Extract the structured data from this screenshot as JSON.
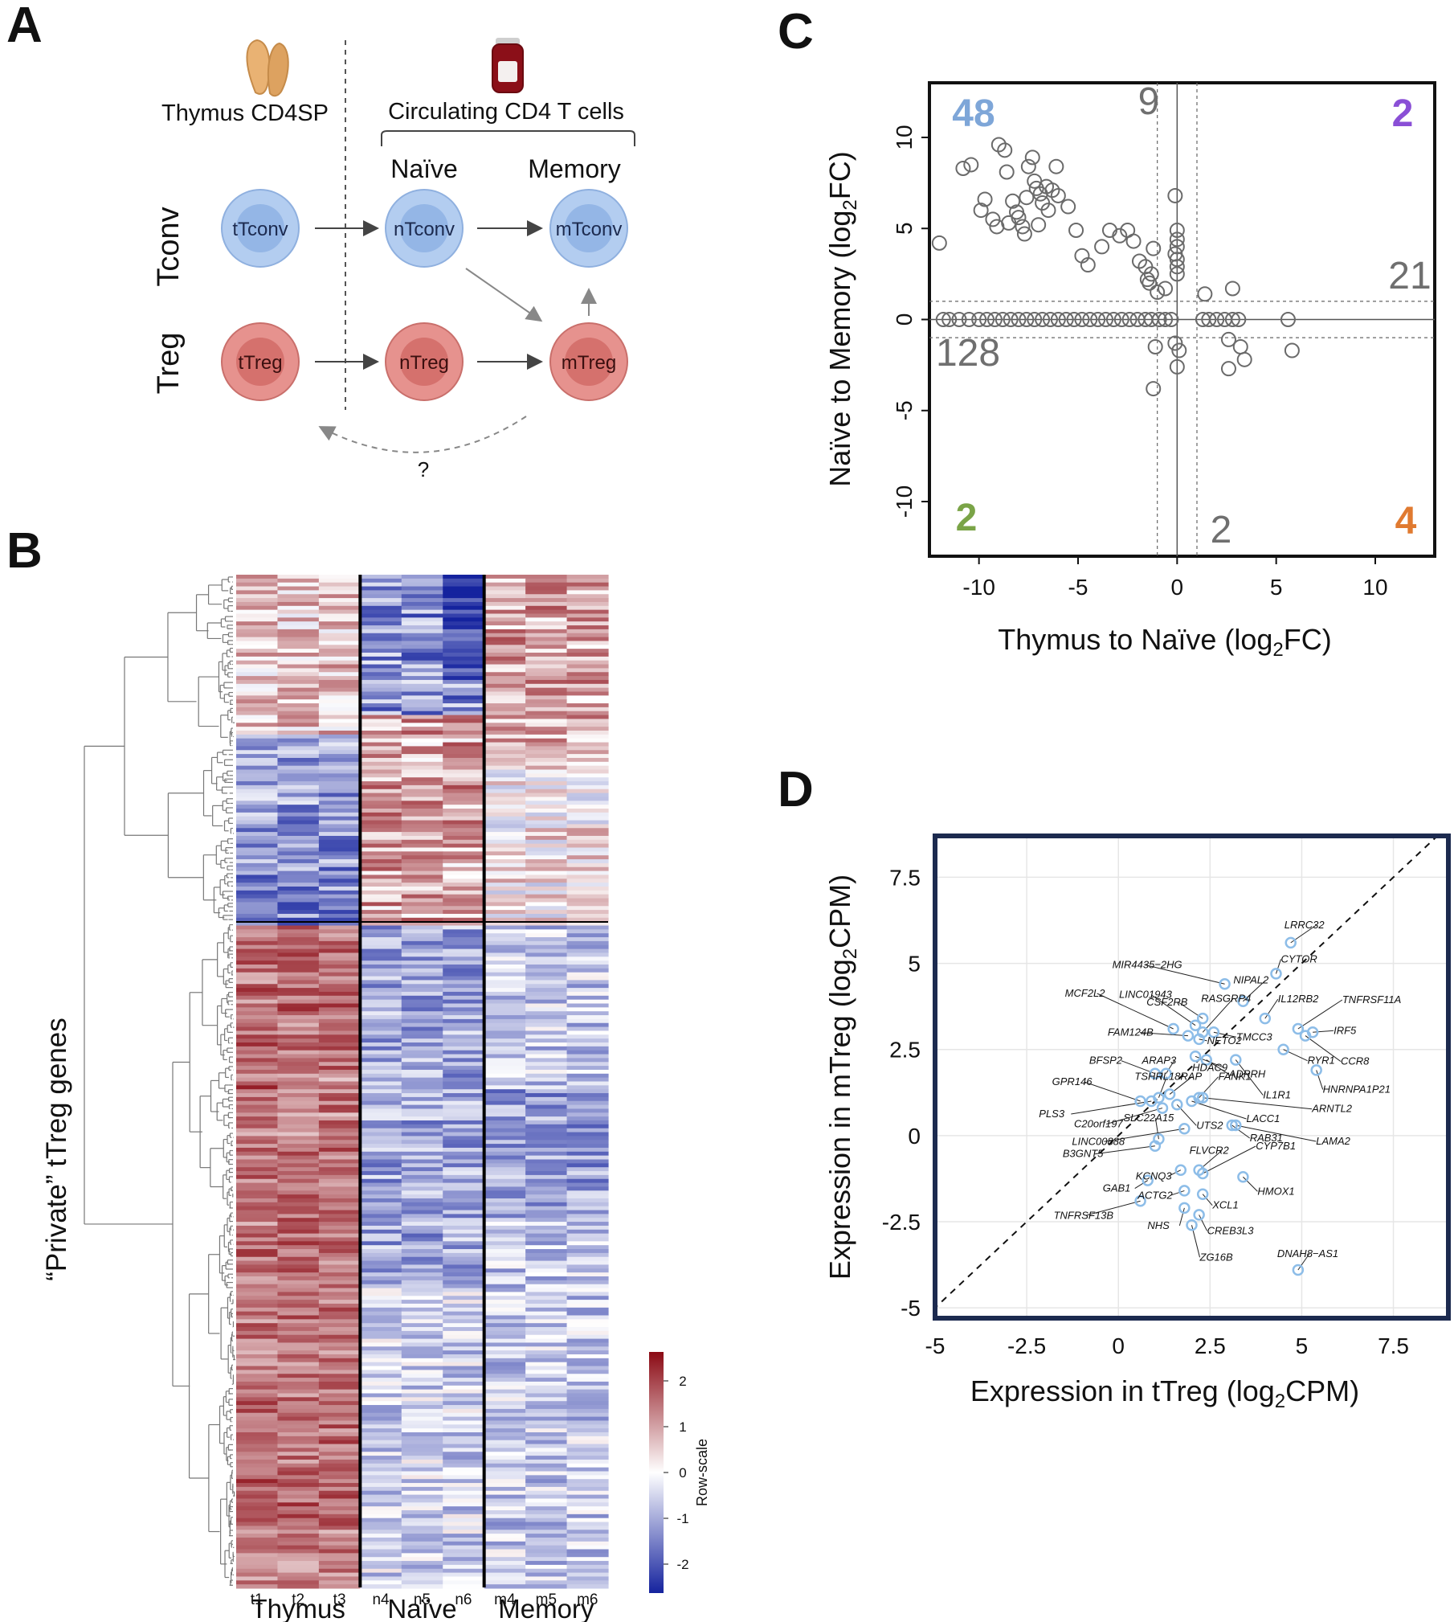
{
  "panels": {
    "A": {
      "label": "A",
      "thymus_title": "Thymus CD4SP",
      "circulating_title": "Circulating CD4 T cells",
      "naive_header": "Naïve",
      "memory_header": "Memory",
      "row_tconv": "Tconv",
      "row_treg": "Treg",
      "cells": {
        "tTconv": "tTconv",
        "nTconv": "nTconv",
        "mTconv": "mTconv",
        "tTreg": "tTreg",
        "nTreg": "nTreg",
        "mTreg": "mTreg"
      },
      "question": "?",
      "colors": {
        "tconv_fill": "#aac8ee",
        "tconv_inner": "#8fb2e6",
        "treg_fill": "#e38d89",
        "treg_inner": "#d46f6b"
      }
    },
    "B": {
      "label": "B",
      "ylabel": "“Private” tTreg genes",
      "columns": [
        "t1",
        "t2",
        "t3",
        "n4",
        "n5",
        "n6",
        "m4",
        "m5",
        "m6"
      ],
      "groups": [
        "Thymus",
        "Naïve",
        "Memory"
      ],
      "legend_title": "Row-scale",
      "legend_ticks": [
        "2",
        "1",
        "0",
        "-1",
        "-2"
      ],
      "colors": {
        "high": "#8b0a14",
        "mid": "#ffffff",
        "low": "#15239e"
      }
    },
    "C": {
      "label": "C",
      "xlabel_pre": "Thymus to Naïve (log",
      "xlabel_sub": "2",
      "xlabel_post": "FC)",
      "ylabel_pre": "Naïve to Memory (log",
      "ylabel_sub": "2",
      "ylabel_post": "FC)",
      "quadrant_counts": [
        {
          "text": "48",
          "color": "#7ea6d8"
        },
        {
          "text": "9",
          "color": "#6f6f6f"
        },
        {
          "text": "2",
          "color": "#8a4fd6"
        },
        {
          "text": "21",
          "color": "#6f6f6f"
        },
        {
          "text": "128",
          "color": "#6f6f6f"
        },
        {
          "text": "2",
          "color": "#7aa447"
        },
        {
          "text": "2",
          "color": "#6f6f6f"
        },
        {
          "text": "4",
          "color": "#e07a30"
        }
      ]
    },
    "D": {
      "label": "D",
      "xlabel_pre": "Expression in tTreg (log",
      "xlabel_sub": "2",
      "xlabel_post": "CPM)",
      "ylabel_pre": "Expression in mTreg (log",
      "ylabel_sub": "2",
      "ylabel_post": "CPM)",
      "frame_color": "#1c2a4f",
      "point_color": "#8dbde8"
    }
  },
  "chart_data": [
    {
      "type": "scatter",
      "panel": "C",
      "xlabel": "Thymus to Naïve (log2FC)",
      "ylabel": "Naïve to Memory (log2FC)",
      "xlim": [
        -12.5,
        13
      ],
      "ylim": [
        -13,
        13
      ],
      "xticks": [
        -10,
        -5,
        0,
        5,
        10
      ],
      "yticks": [
        10,
        5,
        0,
        -5,
        -10
      ],
      "thresholds": [
        -1,
        1
      ],
      "points": [
        [
          -12,
          4.2
        ],
        [
          -10.8,
          8.3
        ],
        [
          -10.4,
          8.5
        ],
        [
          -9.9,
          6
        ],
        [
          -9.7,
          6.6
        ],
        [
          -9.3,
          5.5
        ],
        [
          -9.1,
          5.1
        ],
        [
          -9,
          9.6
        ],
        [
          -8.7,
          9.3
        ],
        [
          -8.6,
          8.1
        ],
        [
          -8.5,
          5.3
        ],
        [
          -8.3,
          6.5
        ],
        [
          -8.1,
          5.9
        ],
        [
          -8,
          5.6
        ],
        [
          -7.8,
          5.1
        ],
        [
          -7.7,
          4.7
        ],
        [
          -7.6,
          6.7
        ],
        [
          -7.5,
          8.4
        ],
        [
          -7.3,
          8.9
        ],
        [
          -7.2,
          7.6
        ],
        [
          -7.1,
          7.2
        ],
        [
          -7,
          5.2
        ],
        [
          -6.9,
          6.9
        ],
        [
          -6.8,
          6.4
        ],
        [
          -6.6,
          7.3
        ],
        [
          -6.5,
          6
        ],
        [
          -6.3,
          7.1
        ],
        [
          -6.1,
          8.4
        ],
        [
          -6,
          6.8
        ],
        [
          -5.5,
          6.2
        ],
        [
          -5.1,
          4.9
        ],
        [
          -4.8,
          3.5
        ],
        [
          -4.5,
          3
        ],
        [
          -3.8,
          4
        ],
        [
          -3.4,
          4.9
        ],
        [
          -2.9,
          4.6
        ],
        [
          -2.5,
          4.9
        ],
        [
          -2.2,
          4.3
        ],
        [
          -1.9,
          3.2
        ],
        [
          -1.6,
          2.9
        ],
        [
          -1.5,
          2.2
        ],
        [
          -1.2,
          3.9
        ],
        [
          -1.3,
          2.5
        ],
        [
          -1.4,
          2
        ],
        [
          -0.6,
          1.7
        ],
        [
          -1,
          1.5
        ],
        [
          -1.1,
          -1.5
        ],
        [
          -1.2,
          -3.8
        ],
        [
          -0.1,
          6.8
        ],
        [
          0,
          4.9
        ],
        [
          0,
          4.4
        ],
        [
          0,
          4
        ],
        [
          -0.1,
          3.6
        ],
        [
          0,
          3.3
        ],
        [
          0,
          2.9
        ],
        [
          0,
          2.5
        ],
        [
          -0.1,
          -1.3
        ],
        [
          0,
          -2.6
        ],
        [
          0.1,
          -1.7
        ],
        [
          1.4,
          1.4
        ],
        [
          2.8,
          1.7
        ],
        [
          2.6,
          -1.1
        ],
        [
          3.4,
          -2.2
        ],
        [
          2.6,
          -2.7
        ],
        [
          3.2,
          -1.5
        ],
        [
          5.6,
          0
        ],
        [
          5.8,
          -1.7
        ],
        [
          -11.8,
          0
        ],
        [
          -11.5,
          0
        ],
        [
          -11,
          0
        ],
        [
          -10.5,
          0
        ],
        [
          -10,
          0
        ],
        [
          -9.6,
          0
        ],
        [
          -9.2,
          0
        ],
        [
          -8.8,
          0
        ],
        [
          -8.4,
          0
        ],
        [
          -8,
          0
        ],
        [
          -7.6,
          0
        ],
        [
          -7.2,
          0
        ],
        [
          -6.8,
          0
        ],
        [
          -6.4,
          0
        ],
        [
          -6,
          0
        ],
        [
          -5.6,
          0
        ],
        [
          -5.2,
          0
        ],
        [
          -4.8,
          0
        ],
        [
          -4.4,
          0
        ],
        [
          -4,
          0
        ],
        [
          -3.6,
          0
        ],
        [
          -3.2,
          0
        ],
        [
          -2.8,
          0
        ],
        [
          -2.4,
          0
        ],
        [
          -2,
          0
        ],
        [
          -1.6,
          0
        ],
        [
          -1.3,
          0
        ],
        [
          -0.9,
          0
        ],
        [
          -0.6,
          0
        ],
        [
          -0.3,
          0
        ],
        [
          1.3,
          0
        ],
        [
          1.6,
          0
        ],
        [
          2,
          0
        ],
        [
          2.4,
          0
        ],
        [
          2.8,
          0
        ],
        [
          3.1,
          0
        ]
      ]
    },
    {
      "type": "scatter",
      "panel": "D",
      "xlabel": "Expression in tTreg (log2CPM)",
      "ylabel": "Expression in mTreg (log2CPM)",
      "xlim": [
        -5,
        9
      ],
      "ylim": [
        -5.3,
        8.7
      ],
      "xticks": [
        "-5",
        "-2.5",
        "0",
        "2.5",
        "5",
        "7.5"
      ],
      "yticks": [
        "7.5",
        "5",
        "2.5",
        "0",
        "-2.5",
        "-5"
      ],
      "points": [
        {
          "label": "LRRC32",
          "x": 4.7,
          "y": 5.6
        },
        {
          "label": "CYTOR",
          "x": 4.3,
          "y": 4.7
        },
        {
          "label": "MIR4435−2HG",
          "x": 2.9,
          "y": 4.4
        },
        {
          "label": "NIPAL2",
          "x": 3.4,
          "y": 3.9
        },
        {
          "label": "CSF2RB",
          "x": 2.3,
          "y": 3.4
        },
        {
          "label": "IL12RB2",
          "x": 4.0,
          "y": 3.4
        },
        {
          "label": "TNFRSF11A",
          "x": 4.9,
          "y": 3.1
        },
        {
          "label": "IRF5",
          "x": 5.3,
          "y": 3.0
        },
        {
          "label": "MCF2L2",
          "x": 1.5,
          "y": 3.1
        },
        {
          "label": "LINC01943",
          "x": 2.1,
          "y": 3.2
        },
        {
          "label": "RASGRP4",
          "x": 2.3,
          "y": 3.0
        },
        {
          "label": "FAM124B",
          "x": 1.9,
          "y": 2.9
        },
        {
          "label": "NETO2",
          "x": 2.2,
          "y": 2.8
        },
        {
          "label": "TMCC3",
          "x": 2.6,
          "y": 3.0
        },
        {
          "label": "CCR8",
          "x": 5.1,
          "y": 2.9
        },
        {
          "label": "RYR1",
          "x": 4.5,
          "y": 2.5
        },
        {
          "label": "BFSP2",
          "x": 1.0,
          "y": 1.8
        },
        {
          "label": "ARAP3",
          "x": 1.3,
          "y": 1.8
        },
        {
          "label": "HDAC9",
          "x": 2.1,
          "y": 2.3
        },
        {
          "label": "ADPRH",
          "x": 2.4,
          "y": 2.2
        },
        {
          "label": "IL1R1",
          "x": 3.2,
          "y": 2.2
        },
        {
          "label": "HNRNPA1P21",
          "x": 5.4,
          "y": 1.9
        },
        {
          "label": "GPR146",
          "x": 0.6,
          "y": 1.0
        },
        {
          "label": "TSHR",
          "x": 1.1,
          "y": 1.1
        },
        {
          "label": "IL18RAP",
          "x": 1.4,
          "y": 1.2
        },
        {
          "label": "FANK1",
          "x": 2.2,
          "y": 1.1
        },
        {
          "label": "PLS3",
          "x": 0.9,
          "y": 1.0
        },
        {
          "label": "C20orf197",
          "x": 1.2,
          "y": 0.8
        },
        {
          "label": "UTS2",
          "x": 1.6,
          "y": 0.9
        },
        {
          "label": "LACC1",
          "x": 2.0,
          "y": 1.0
        },
        {
          "label": "ARNTL2",
          "x": 2.3,
          "y": 1.1
        },
        {
          "label": "SLC22A15",
          "x": 1.1,
          "y": -0.1
        },
        {
          "label": "LINC00888",
          "x": 1.8,
          "y": 0.2
        },
        {
          "label": "RAB31",
          "x": 3.1,
          "y": 0.3
        },
        {
          "label": "LAMA2",
          "x": 3.2,
          "y": 0.3
        },
        {
          "label": "B3GNT5",
          "x": 1.0,
          "y": -0.3
        },
        {
          "label": "KCNQ3",
          "x": 1.7,
          "y": -1.0
        },
        {
          "label": "FLVCR2",
          "x": 2.2,
          "y": -1.0
        },
        {
          "label": "CYP7B1",
          "x": 2.3,
          "y": -1.1
        },
        {
          "label": "HMOX1",
          "x": 3.4,
          "y": -1.2
        },
        {
          "label": "GAB1",
          "x": 0.8,
          "y": -1.3
        },
        {
          "label": "ACTG2",
          "x": 1.8,
          "y": -1.6
        },
        {
          "label": "XCL1",
          "x": 2.3,
          "y": -1.7
        },
        {
          "label": "TNFRSF13B",
          "x": 0.6,
          "y": -1.9
        },
        {
          "label": "NHS",
          "x": 1.8,
          "y": -2.1
        },
        {
          "label": "CREB3L3",
          "x": 2.2,
          "y": -2.3
        },
        {
          "label": "ZG16B",
          "x": 2.0,
          "y": -2.6
        },
        {
          "label": "DNAH8−AS1",
          "x": 4.9,
          "y": -3.9
        }
      ]
    },
    {
      "type": "heatmap",
      "panel": "B",
      "columns": [
        "t1",
        "t2",
        "t3",
        "n4",
        "n5",
        "n6",
        "m4",
        "m5",
        "m6"
      ],
      "row_clusters": [
        {
          "name": "upper",
          "rows": 90,
          "pattern": [
            "mixed",
            "mixed",
            "mixed",
            "low→high",
            "low→high",
            "low→high",
            "high",
            "high",
            "mixed"
          ]
        },
        {
          "name": "lower",
          "rows": 170,
          "pattern": [
            "high",
            "high",
            "high",
            "low",
            "low",
            "low",
            "low",
            "low",
            "low"
          ]
        }
      ],
      "value_range": [
        -2.5,
        2.5
      ]
    }
  ]
}
